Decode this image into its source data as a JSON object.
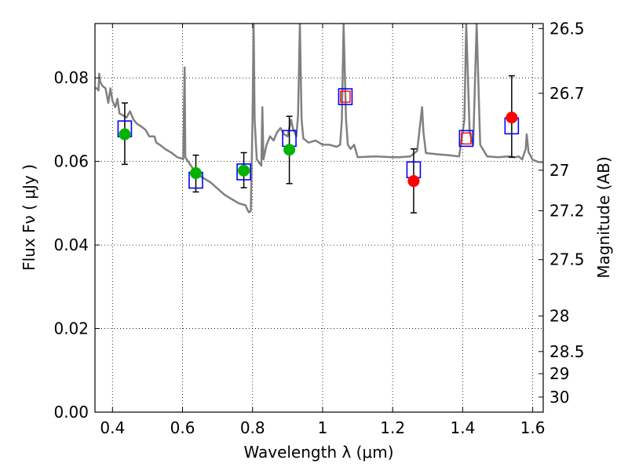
{
  "chart_data": {
    "type": "scatter",
    "title": "",
    "xlabel": "Wavelength  λ (μm)",
    "ylabel": "Flux  Fν  ( μJy )",
    "ylabel_right": "Magnitude (AB)",
    "xlim": [
      0.35,
      1.63
    ],
    "ylim": [
      0.0,
      0.093
    ],
    "grid": true,
    "x_ticks": [
      0.4,
      0.6,
      0.8,
      1.0,
      1.2,
      1.4,
      1.6
    ],
    "x_tick_labels": [
      "0.4",
      "0.6",
      "0.8",
      "1",
      "1.2",
      "1.4",
      "1.6"
    ],
    "y_ticks": [
      0.0,
      0.02,
      0.04,
      0.06,
      0.08
    ],
    "y_tick_labels": [
      "0.00",
      "0.02",
      "0.04",
      "0.06",
      "0.08"
    ],
    "right_ticks": [
      {
        "label": "26.5",
        "flux": 0.0918
      },
      {
        "label": "26.7",
        "flux": 0.0763
      },
      {
        "label": "27",
        "flux": 0.0579
      },
      {
        "label": "27.2",
        "flux": 0.0482
      },
      {
        "label": "27.5",
        "flux": 0.0365
      },
      {
        "label": "28",
        "flux": 0.023
      },
      {
        "label": "28.5",
        "flux": 0.0145
      },
      {
        "label": "29",
        "flux": 0.0092
      },
      {
        "label": "30",
        "flux": 0.0036
      }
    ],
    "model_spectrum": {
      "color": "#808080",
      "points": [
        [
          0.352,
          0.0777
        ],
        [
          0.36,
          0.077
        ],
        [
          0.362,
          0.081
        ],
        [
          0.365,
          0.079
        ],
        [
          0.372,
          0.078
        ],
        [
          0.38,
          0.0775
        ],
        [
          0.388,
          0.074
        ],
        [
          0.394,
          0.0775
        ],
        [
          0.4,
          0.0745
        ],
        [
          0.408,
          0.073
        ],
        [
          0.414,
          0.075
        ],
        [
          0.42,
          0.0715
        ],
        [
          0.43,
          0.071
        ],
        [
          0.44,
          0.0705
        ],
        [
          0.45,
          0.072
        ],
        [
          0.46,
          0.07
        ],
        [
          0.47,
          0.069
        ],
        [
          0.48,
          0.0685
        ],
        [
          0.495,
          0.0675
        ],
        [
          0.505,
          0.066
        ],
        [
          0.52,
          0.066
        ],
        [
          0.525,
          0.0645
        ],
        [
          0.535,
          0.064
        ],
        [
          0.55,
          0.063
        ],
        [
          0.57,
          0.062
        ],
        [
          0.585,
          0.061
        ],
        [
          0.598,
          0.0607
        ],
        [
          0.602,
          0.0605
        ],
        [
          0.606,
          0.0825
        ],
        [
          0.608,
          0.061
        ],
        [
          0.62,
          0.0595
        ],
        [
          0.64,
          0.057
        ],
        [
          0.66,
          0.056
        ],
        [
          0.68,
          0.055
        ],
        [
          0.7,
          0.0535
        ],
        [
          0.72,
          0.052
        ],
        [
          0.74,
          0.051
        ],
        [
          0.76,
          0.05
        ],
        [
          0.78,
          0.0495
        ],
        [
          0.785,
          0.0485
        ],
        [
          0.79,
          0.0478
        ],
        [
          0.795,
          0.0482
        ],
        [
          0.8,
          0.07
        ],
        [
          0.803,
          0.093
        ],
        [
          0.806,
          0.07
        ],
        [
          0.812,
          0.0605
        ],
        [
          0.825,
          0.059
        ],
        [
          0.828,
          0.073
        ],
        [
          0.831,
          0.0605
        ],
        [
          0.84,
          0.064
        ],
        [
          0.85,
          0.066
        ],
        [
          0.86,
          0.065
        ],
        [
          0.87,
          0.067
        ],
        [
          0.88,
          0.068
        ],
        [
          0.89,
          0.0665
        ],
        [
          0.9,
          0.066
        ],
        [
          0.91,
          0.07
        ],
        [
          0.915,
          0.068
        ],
        [
          0.925,
          0.066
        ],
        [
          0.93,
          0.071
        ],
        [
          0.935,
          0.093
        ],
        [
          0.94,
          0.07
        ],
        [
          0.945,
          0.0655
        ],
        [
          0.96,
          0.0645
        ],
        [
          0.98,
          0.065
        ],
        [
          1.0,
          0.064
        ],
        [
          1.02,
          0.064
        ],
        [
          1.04,
          0.0635
        ],
        [
          1.05,
          0.064
        ],
        [
          1.055,
          0.07
        ],
        [
          1.06,
          0.093
        ],
        [
          1.067,
          0.07
        ],
        [
          1.072,
          0.064
        ],
        [
          1.08,
          0.063
        ],
        [
          1.09,
          0.064
        ],
        [
          1.1,
          0.061
        ],
        [
          1.15,
          0.0612
        ],
        [
          1.2,
          0.061
        ],
        [
          1.22,
          0.061
        ],
        [
          1.25,
          0.0612
        ],
        [
          1.27,
          0.0625
        ],
        [
          1.28,
          0.07
        ],
        [
          1.284,
          0.073
        ],
        [
          1.288,
          0.067
        ],
        [
          1.295,
          0.062
        ],
        [
          1.33,
          0.0617
        ],
        [
          1.36,
          0.0615
        ],
        [
          1.39,
          0.0612
        ],
        [
          1.405,
          0.07
        ],
        [
          1.41,
          0.093
        ],
        [
          1.42,
          0.067
        ],
        [
          1.43,
          0.064
        ],
        [
          1.44,
          0.093
        ],
        [
          1.45,
          0.064
        ],
        [
          1.47,
          0.0612
        ],
        [
          1.5,
          0.061
        ],
        [
          1.53,
          0.0612
        ],
        [
          1.55,
          0.061
        ],
        [
          1.56,
          0.0612
        ],
        [
          1.57,
          0.0605
        ],
        [
          1.58,
          0.063
        ],
        [
          1.583,
          0.0665
        ],
        [
          1.588,
          0.0622
        ],
        [
          1.6,
          0.0604
        ],
        [
          1.615,
          0.0599
        ],
        [
          1.63,
          0.0598
        ]
      ]
    },
    "series": [
      {
        "marker": "open-square",
        "color": "#0000ff",
        "points": [
          [
            0.435,
            0.0678
          ],
          [
            0.638,
            0.0555
          ],
          [
            0.775,
            0.0575
          ],
          [
            0.905,
            0.0655
          ],
          [
            1.065,
            0.0755
          ],
          [
            1.26,
            0.058
          ],
          [
            1.41,
            0.0655
          ],
          [
            1.54,
            0.0685
          ]
        ]
      },
      {
        "marker": "filled-circle",
        "color": "#00b400",
        "points": [
          {
            "x": 0.435,
            "y": 0.0665,
            "yerr_low": 0.0593,
            "yerr_high": 0.074
          },
          {
            "x": 0.638,
            "y": 0.0572,
            "yerr_low": 0.0527,
            "yerr_high": 0.0615
          },
          {
            "x": 0.775,
            "y": 0.0578,
            "yerr_low": 0.0537,
            "yerr_high": 0.0621
          },
          {
            "x": 0.905,
            "y": 0.0628,
            "yerr_low": 0.0547,
            "yerr_high": 0.0708
          }
        ]
      },
      {
        "marker": "filled-circle",
        "color": "#ff0000",
        "points": [
          {
            "x": 1.26,
            "y": 0.0553,
            "yerr_low": 0.0477,
            "yerr_high": 0.063
          },
          {
            "x": 1.54,
            "y": 0.0705,
            "yerr_low": 0.061,
            "yerr_high": 0.0805
          }
        ]
      },
      {
        "marker": "small-open-square",
        "color": "#ff0000",
        "points": [
          [
            1.065,
            0.0755
          ],
          [
            1.41,
            0.0655
          ]
        ]
      }
    ]
  }
}
